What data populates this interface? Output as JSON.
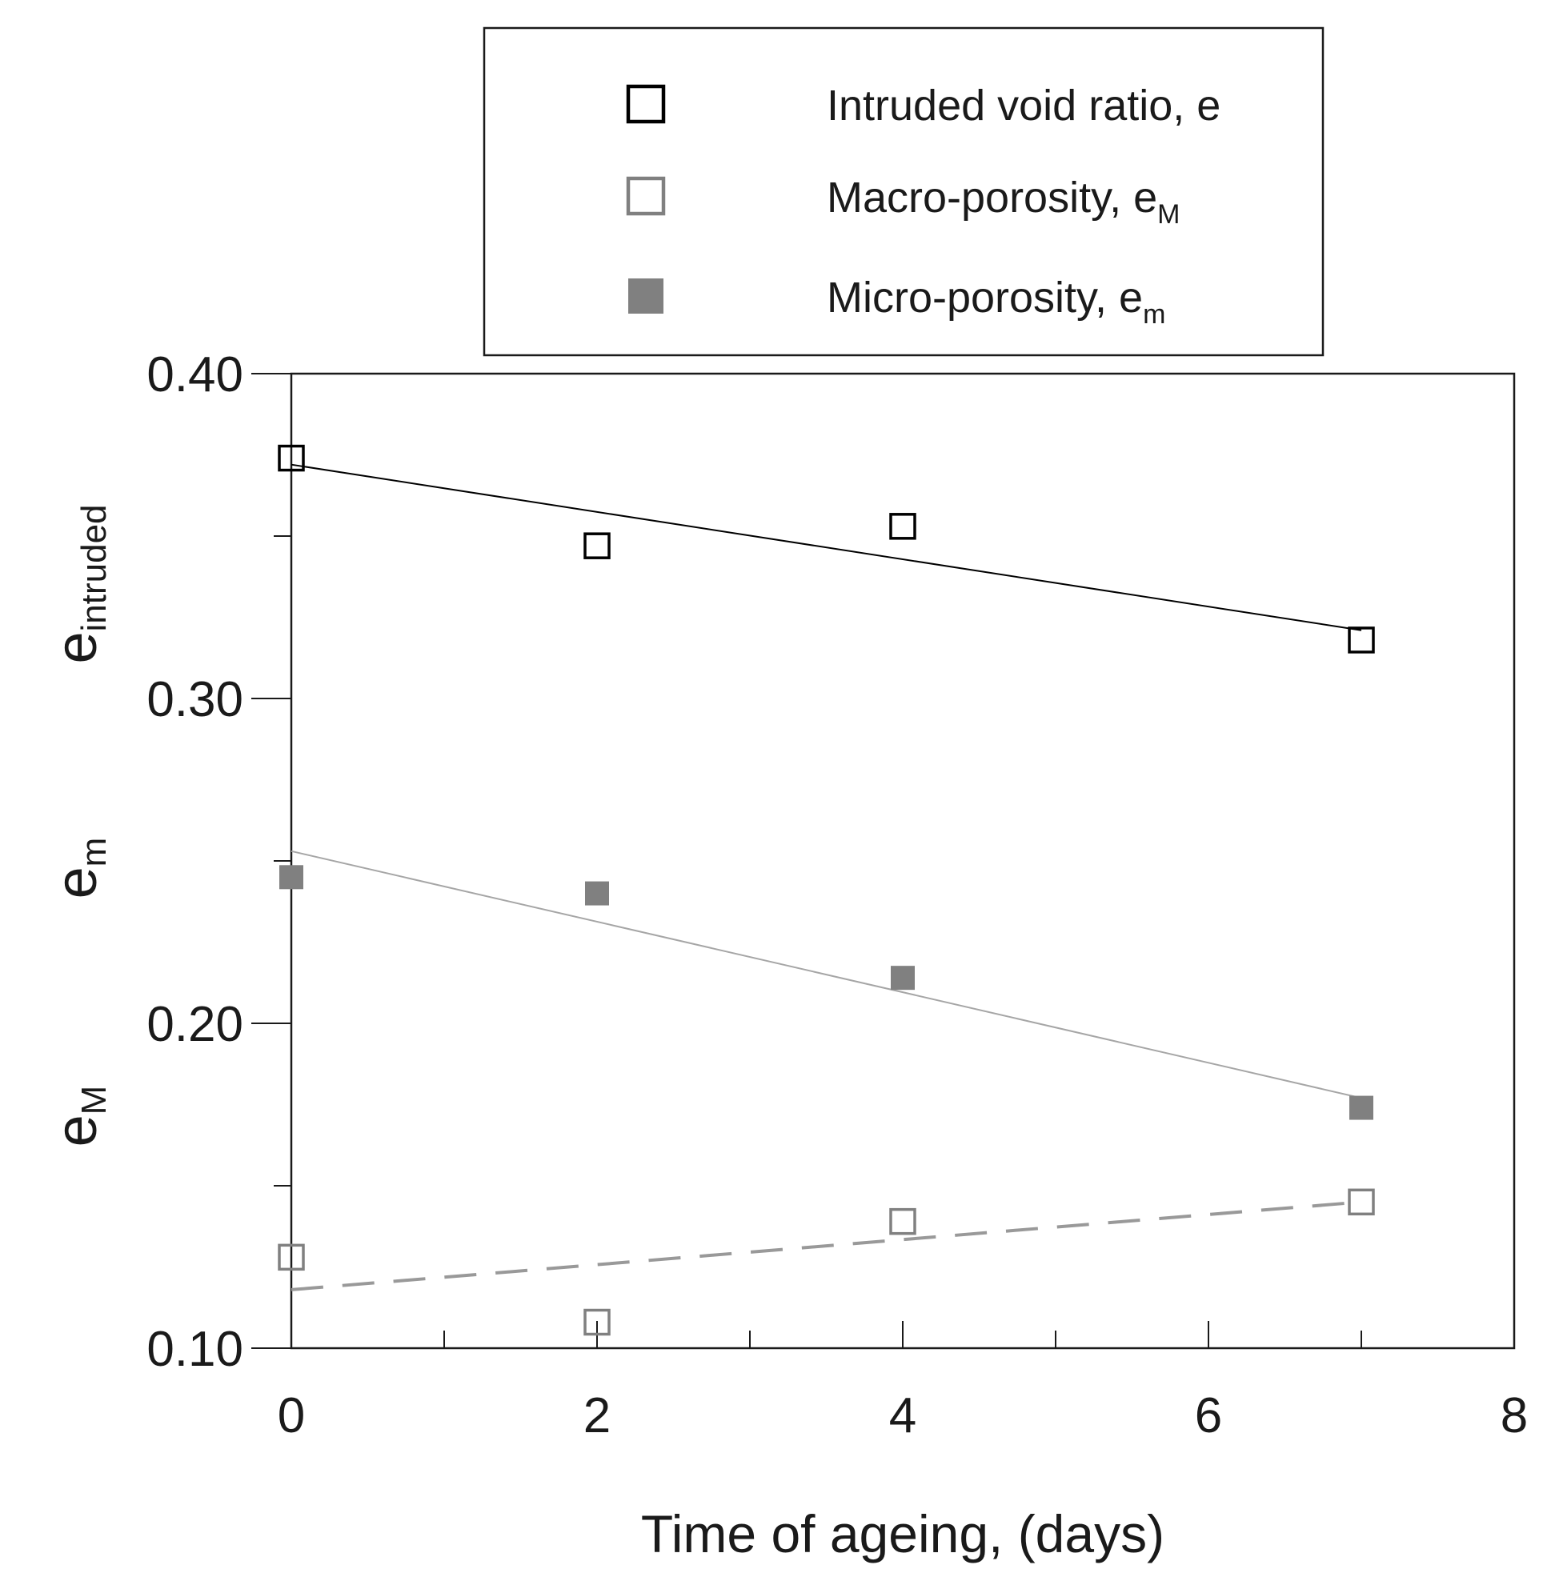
{
  "chart_data": {
    "type": "scatter",
    "title": "",
    "xlabel": "Time of ageing, (days)",
    "ylabel_parts": [
      {
        "main": "e",
        "sub": "intruded"
      },
      {
        "main": "e",
        "sub": "m"
      },
      {
        "main": "e",
        "sub": "M"
      }
    ],
    "xlim": [
      0,
      8
    ],
    "ylim": [
      0.1,
      0.4
    ],
    "x_ticks": [
      0,
      2,
      4,
      6,
      8
    ],
    "x_tick_labels": [
      "0",
      "2",
      "4",
      "6",
      "8"
    ],
    "x_minor_ticks": [
      1,
      3,
      5,
      7
    ],
    "y_ticks": [
      0.1,
      0.2,
      0.3,
      0.4
    ],
    "y_tick_labels": [
      "0.10",
      "0.20",
      "0.30",
      "0.40"
    ],
    "y_minor_ticks": [
      0.15,
      0.25,
      0.35
    ],
    "grid": false,
    "legend_position": "top-center, above plot",
    "series": [
      {
        "name": "Intruded void ratio, e",
        "legend_main": "Intruded void ratio, e",
        "legend_sub": "",
        "marker": "open-square",
        "color": "#000000",
        "line_style": "solid",
        "line_color": "#000000",
        "x": [
          0,
          2,
          4,
          7
        ],
        "y": [
          0.374,
          0.347,
          0.353,
          0.318
        ],
        "fit": {
          "x": [
            0,
            7
          ],
          "y": [
            0.372,
            0.321
          ]
        }
      },
      {
        "name": "Macro-porosity, eM",
        "legend_main": "Macro-porosity, e",
        "legend_sub": "M",
        "marker": "open-square",
        "color": "#808080",
        "line_style": "dashed",
        "line_color": "#999999",
        "x": [
          0,
          2,
          4,
          7
        ],
        "y": [
          0.128,
          0.108,
          0.139,
          0.145
        ],
        "fit": {
          "x": [
            0,
            7
          ],
          "y": [
            0.118,
            0.145
          ]
        }
      },
      {
        "name": "Micro-porosity, em",
        "legend_main": "Micro-porosity, e",
        "legend_sub": "m",
        "marker": "filled-square",
        "color": "#808080",
        "line_style": "solid",
        "line_color": "#a6a6a6",
        "x": [
          0,
          2,
          4,
          7
        ],
        "y": [
          0.245,
          0.24,
          0.214,
          0.174
        ],
        "fit": {
          "x": [
            0,
            7
          ],
          "y": [
            0.253,
            0.177
          ]
        }
      }
    ]
  }
}
